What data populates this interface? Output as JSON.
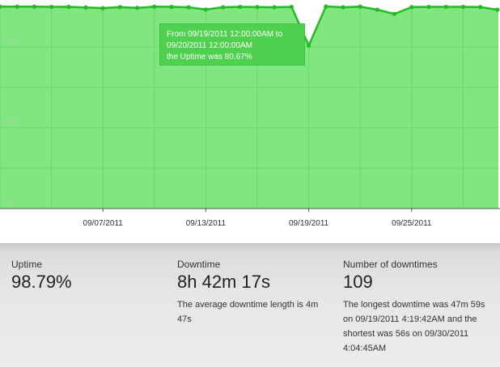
{
  "chart_data": {
    "type": "area",
    "x_tick_labels": [
      "09/07/2011",
      "09/13/2011",
      "09/19/2011",
      "09/25/2011"
    ],
    "y_tick_labels": [
      "80%",
      "40%",
      "0%"
    ],
    "ylim": [
      0,
      100
    ],
    "series": [
      {
        "x": [
          "09/01/2011",
          "09/02/2011",
          "09/03/2011",
          "09/04/2011",
          "09/05/2011",
          "09/06/2011",
          "09/07/2011",
          "09/08/2011",
          "09/09/2011",
          "09/10/2011",
          "09/11/2011",
          "09/12/2011",
          "09/13/2011",
          "09/14/2011",
          "09/15/2011",
          "09/16/2011",
          "09/17/2011",
          "09/18/2011",
          "09/19/2011",
          "09/20/2011",
          "09/21/2011",
          "09/22/2011",
          "09/23/2011",
          "09/24/2011",
          "09/25/2011",
          "09/26/2011",
          "09/27/2011",
          "09/28/2011",
          "09/29/2011",
          "09/30/2011"
        ],
        "values": [
          99.9,
          99.9,
          99.9,
          99.8,
          99.8,
          99.5,
          99.2,
          99.7,
          99.3,
          99.9,
          99.8,
          99.6,
          98.5,
          99.6,
          99.8,
          99.7,
          99.6,
          99.8,
          80.67,
          100,
          99.6,
          99.9,
          98.4,
          96.3,
          99.7,
          99.8,
          99.8,
          99.8,
          99.7,
          98.4
        ]
      }
    ],
    "tooltip": {
      "line1": "From 09/19/2011 12:00:00AM to",
      "line2": "09/20/2011 12:00:00AM",
      "line3": "the Uptime was 80.67%"
    },
    "grid": true,
    "legend": "none",
    "colors": {
      "fill": "#80e680",
      "line": "#22bb22",
      "grid": "#6fd66f"
    }
  },
  "stats": {
    "uptime": {
      "label": "Uptime",
      "value": "98.79%"
    },
    "downtime": {
      "label": "Downtime",
      "value": "8h 42m 17s",
      "note": "The average downtime length is 4m 47s"
    },
    "count": {
      "label": "Number of downtimes",
      "value": "109",
      "note": "The longest downtime was 47m 59s on 09/19/2011 4:19:42AM and the shortest was 56s on 09/30/2011 4:04:45AM"
    }
  }
}
